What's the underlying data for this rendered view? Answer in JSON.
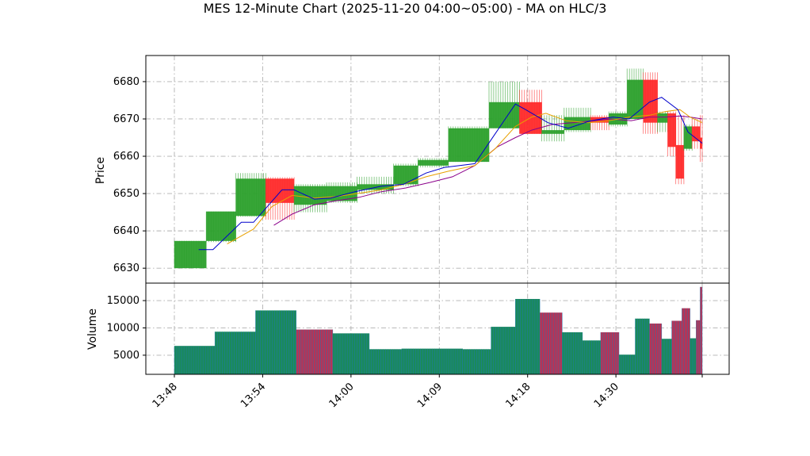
{
  "chart_data": [
    {
      "type": "candlestick",
      "title": "MES 12-Minute Chart (2025-11-20 04:00~05:00) - MA on HLC/3",
      "ylabel": "Price",
      "ylim": [
        6626,
        6687
      ],
      "yticks": [
        6630,
        6640,
        6650,
        6660,
        6670,
        6680
      ],
      "grid": true,
      "colors": {
        "up": "#2ca02c",
        "down": "#ff2a2a",
        "ma_fast": "#0000cc",
        "ma_mid": "#e8a000",
        "ma_slow": "#8b008b"
      },
      "candles": [
        {
          "t0": 0.0,
          "t1": 1.57,
          "open": 6630.0,
          "high": 6637.3,
          "low": 6630.0,
          "close": 6637.3
        },
        {
          "t0": 1.57,
          "t1": 3.03,
          "open": 6637.3,
          "high": 6645.2,
          "low": 6637.0,
          "close": 6645.2
        },
        {
          "t0": 3.03,
          "t1": 4.5,
          "open": 6644.0,
          "high": 6655.5,
          "low": 6643.8,
          "close": 6654.0
        },
        {
          "t0": 4.5,
          "t1": 5.9,
          "open": 6654.0,
          "high": 6654.4,
          "low": 6643.0,
          "close": 6647.5
        },
        {
          "t0": 5.9,
          "t1": 7.5,
          "open": 6647.0,
          "high": 6652.5,
          "low": 6645.0,
          "close": 6652.0
        },
        {
          "t0": 7.5,
          "t1": 9.0,
          "open": 6648.0,
          "high": 6653.0,
          "low": 6647.5,
          "close": 6652.0
        },
        {
          "t0": 9.0,
          "t1": 10.8,
          "open": 6651.0,
          "high": 6654.5,
          "low": 6650.0,
          "close": 6652.5
        },
        {
          "t0": 10.8,
          "t1": 12.0,
          "open": 6652.5,
          "high": 6658.0,
          "low": 6652.0,
          "close": 6657.5
        },
        {
          "t0": 12.0,
          "t1": 13.5,
          "open": 6657.5,
          "high": 6659.5,
          "low": 6657.0,
          "close": 6659.0
        },
        {
          "t0": 13.5,
          "t1": 15.5,
          "open": 6658.5,
          "high": 6668.0,
          "low": 6658.5,
          "close": 6667.5
        },
        {
          "t0": 15.5,
          "t1": 17.0,
          "open": 6667.5,
          "high": 6680.0,
          "low": 6667.5,
          "close": 6674.5
        },
        {
          "t0": 17.0,
          "t1": 18.1,
          "open": 6674.5,
          "high": 6677.8,
          "low": 6666.0,
          "close": 6666.0
        },
        {
          "t0": 18.1,
          "t1": 19.2,
          "open": 6666.0,
          "high": 6671.0,
          "low": 6664.0,
          "close": 6667.0
        },
        {
          "t0": 19.2,
          "t1": 20.5,
          "open": 6667.0,
          "high": 6673.0,
          "low": 6666.5,
          "close": 6670.5
        },
        {
          "t0": 20.5,
          "t1": 21.4,
          "open": 6670.5,
          "high": 6671.0,
          "low": 6667.0,
          "close": 6669.0
        },
        {
          "t0": 21.4,
          "t1": 22.3,
          "open": 6668.5,
          "high": 6672.0,
          "low": 6668.0,
          "close": 6671.5
        },
        {
          "t0": 22.3,
          "t1": 23.1,
          "open": 6670.0,
          "high": 6683.5,
          "low": 6670.0,
          "close": 6680.5
        },
        {
          "t0": 23.1,
          "t1": 23.8,
          "open": 6680.5,
          "high": 6682.5,
          "low": 6666.0,
          "close": 6669.0
        },
        {
          "t0": 23.8,
          "t1": 24.3,
          "open": 6669.0,
          "high": 6672.0,
          "low": 6666.5,
          "close": 6671.5
        },
        {
          "t0": 24.3,
          "t1": 24.7,
          "open": 6671.5,
          "high": 6672.0,
          "low": 6660.0,
          "close": 6662.5
        },
        {
          "t0": 24.7,
          "t1": 25.1,
          "open": 6663.0,
          "high": 6671.0,
          "low": 6652.5,
          "close": 6654.0
        },
        {
          "t0": 25.1,
          "t1": 25.5,
          "open": 6662.0,
          "high": 6668.5,
          "low": 6661.5,
          "close": 6668.0
        },
        {
          "t0": 25.5,
          "t1": 25.9,
          "open": 6668.0,
          "high": 6670.0,
          "low": 6662.0,
          "close": 6664.0
        },
        {
          "t0": 25.9,
          "t1": 26.0,
          "open": 6665.0,
          "high": 6671.0,
          "low": 6658.5,
          "close": 6662.0
        }
      ],
      "ma_fast": [
        [
          1.2,
          6635
        ],
        [
          1.9,
          6635
        ],
        [
          3.3,
          6642.3
        ],
        [
          3.9,
          6642.3
        ],
        [
          5.3,
          6651
        ],
        [
          5.9,
          6651
        ],
        [
          6.9,
          6648.5
        ],
        [
          7.7,
          6648.8
        ],
        [
          8.9,
          6650.5
        ],
        [
          10.2,
          6652
        ],
        [
          11.3,
          6652.5
        ],
        [
          12.4,
          6655.5
        ],
        [
          13.3,
          6657
        ],
        [
          14.8,
          6658
        ],
        [
          15.8,
          6666
        ],
        [
          16.8,
          6674
        ],
        [
          17.3,
          6672.5
        ],
        [
          18.4,
          6669
        ],
        [
          19.4,
          6667.5
        ],
        [
          20.5,
          6669.5
        ],
        [
          21.6,
          6670.5
        ],
        [
          22.4,
          6670
        ],
        [
          23.4,
          6674.5
        ],
        [
          24.0,
          6675.8
        ],
        [
          24.8,
          6672.5
        ],
        [
          25.3,
          6666.5
        ],
        [
          26.0,
          6663.5
        ]
      ],
      "ma_mid": [
        [
          2.6,
          6636.5
        ],
        [
          3.9,
          6640.5
        ],
        [
          4.8,
          6646.5
        ],
        [
          5.8,
          6649.5
        ],
        [
          6.9,
          6648.8
        ],
        [
          8.0,
          6649.2
        ],
        [
          9.0,
          6650
        ],
        [
          10.2,
          6651
        ],
        [
          11.3,
          6652.5
        ],
        [
          12.4,
          6654.5
        ],
        [
          13.5,
          6656
        ],
        [
          14.8,
          6657.5
        ],
        [
          15.8,
          6662
        ],
        [
          16.8,
          6668
        ],
        [
          17.6,
          6670.5
        ],
        [
          18.3,
          6671.5
        ],
        [
          19.3,
          6669.5
        ],
        [
          20.4,
          6669
        ],
        [
          21.4,
          6669.5
        ],
        [
          22.4,
          6670.5
        ],
        [
          23.4,
          6671
        ],
        [
          24.2,
          6672
        ],
        [
          24.9,
          6672.5
        ],
        [
          25.4,
          6670.5
        ],
        [
          26.0,
          6669
        ]
      ],
      "ma_slow": [
        [
          4.9,
          6641.5
        ],
        [
          5.8,
          6644.5
        ],
        [
          6.9,
          6647
        ],
        [
          7.9,
          6648
        ],
        [
          9.1,
          6649
        ],
        [
          10.2,
          6650.5
        ],
        [
          11.4,
          6651.5
        ],
        [
          12.6,
          6653
        ],
        [
          13.7,
          6654.5
        ],
        [
          14.8,
          6657.5
        ],
        [
          15.9,
          6662.5
        ],
        [
          16.8,
          6665
        ],
        [
          17.6,
          6667
        ],
        [
          18.6,
          6668.5
        ],
        [
          19.6,
          6669
        ],
        [
          20.6,
          6669.5
        ],
        [
          21.5,
          6670
        ],
        [
          22.5,
          6669.5
        ],
        [
          23.4,
          6670.5
        ],
        [
          24.2,
          6670.5
        ],
        [
          24.9,
          6670.8
        ],
        [
          25.4,
          6670.5
        ],
        [
          26.0,
          6670
        ]
      ]
    },
    {
      "type": "bar",
      "ylabel": "Volume",
      "ylim": [
        1500,
        18200
      ],
      "yticks": [
        5000,
        10000,
        15000
      ],
      "xticks": [
        {
          "t": 0,
          "label": "13:48"
        },
        {
          "t": 4.35,
          "label": "13:54"
        },
        {
          "t": 8.7,
          "label": "14:00"
        },
        {
          "t": 13.05,
          "label": "14:09"
        },
        {
          "t": 17.4,
          "label": "14:18"
        },
        {
          "t": 21.75,
          "label": "14:30"
        },
        {
          "t": 26,
          "label": ""
        }
      ],
      "bars": [
        {
          "t0": 0.0,
          "t1": 2.0,
          "v": 6700,
          "up": true
        },
        {
          "t0": 2.0,
          "t1": 4.0,
          "v": 9300,
          "up": true
        },
        {
          "t0": 4.0,
          "t1": 6.0,
          "v": 13200,
          "up": true
        },
        {
          "t0": 6.0,
          "t1": 7.8,
          "v": 9700,
          "up": false
        },
        {
          "t0": 7.8,
          "t1": 9.6,
          "v": 9000,
          "up": true
        },
        {
          "t0": 9.6,
          "t1": 11.2,
          "v": 6100,
          "up": true
        },
        {
          "t0": 11.2,
          "t1": 14.2,
          "v": 6200,
          "up": true
        },
        {
          "t0": 14.2,
          "t1": 15.6,
          "v": 6100,
          "up": true
        },
        {
          "t0": 15.6,
          "t1": 16.8,
          "v": 10200,
          "up": true
        },
        {
          "t0": 16.8,
          "t1": 18.0,
          "v": 15300,
          "up": true
        },
        {
          "t0": 18.0,
          "t1": 19.1,
          "v": 12800,
          "up": false
        },
        {
          "t0": 19.1,
          "t1": 20.1,
          "v": 9200,
          "up": true
        },
        {
          "t0": 20.1,
          "t1": 21.0,
          "v": 7700,
          "up": true
        },
        {
          "t0": 21.0,
          "t1": 21.9,
          "v": 9200,
          "up": false
        },
        {
          "t0": 21.9,
          "t1": 22.7,
          "v": 5100,
          "up": true
        },
        {
          "t0": 22.7,
          "t1": 23.4,
          "v": 11700,
          "up": true
        },
        {
          "t0": 23.4,
          "t1": 24.0,
          "v": 10800,
          "up": false
        },
        {
          "t0": 24.0,
          "t1": 24.5,
          "v": 8000,
          "up": true
        },
        {
          "t0": 24.5,
          "t1": 25.0,
          "v": 11300,
          "up": false
        },
        {
          "t0": 25.0,
          "t1": 25.4,
          "v": 13600,
          "up": false
        },
        {
          "t0": 25.4,
          "t1": 25.7,
          "v": 8100,
          "up": true
        },
        {
          "t0": 25.7,
          "t1": 25.9,
          "v": 11400,
          "up": false
        },
        {
          "t0": 25.9,
          "t1": 26.0,
          "v": 17500,
          "up": false
        }
      ],
      "colors": {
        "up": "#1a8a5a",
        "down": "#b83355",
        "edge": "#1f77b4"
      }
    }
  ]
}
